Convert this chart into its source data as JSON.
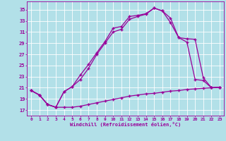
{
  "xlabel": "Windchill (Refroidissement éolien,°C)",
  "background_color": "#b2e0e8",
  "grid_color": "#ffffff",
  "line_color": "#990099",
  "x_ticks": [
    0,
    1,
    2,
    3,
    4,
    5,
    6,
    7,
    8,
    9,
    10,
    11,
    12,
    13,
    14,
    15,
    16,
    17,
    18,
    19,
    20,
    21,
    22,
    23
  ],
  "y_ticks": [
    17,
    19,
    21,
    23,
    25,
    27,
    29,
    31,
    33,
    35
  ],
  "ylim": [
    16.0,
    36.5
  ],
  "xlim": [
    -0.5,
    23.5
  ],
  "line1_x": [
    0,
    1,
    2,
    3,
    4,
    5,
    6,
    7,
    8,
    9,
    10,
    11,
    12,
    13,
    14,
    15,
    16,
    17,
    18,
    19,
    20,
    21,
    22,
    23
  ],
  "line1_y": [
    20.5,
    19.7,
    18.0,
    17.5,
    17.5,
    17.5,
    17.7,
    18.0,
    18.3,
    18.6,
    18.9,
    19.2,
    19.5,
    19.7,
    19.9,
    20.0,
    20.2,
    20.4,
    20.5,
    20.7,
    20.8,
    20.9,
    21.0,
    21.1
  ],
  "line2_x": [
    0,
    1,
    2,
    3,
    4,
    5,
    6,
    7,
    8,
    9,
    10,
    11,
    12,
    13,
    14,
    15,
    16,
    17,
    18,
    19,
    20,
    21,
    22,
    23
  ],
  "line2_y": [
    20.5,
    19.7,
    18.0,
    17.5,
    20.3,
    21.2,
    23.3,
    25.2,
    27.3,
    29.3,
    31.7,
    32.0,
    33.8,
    34.0,
    34.3,
    35.3,
    34.8,
    33.5,
    30.0,
    29.2,
    22.5,
    22.3,
    21.0,
    21.1
  ],
  "line3_x": [
    0,
    1,
    2,
    3,
    4,
    5,
    6,
    7,
    8,
    9,
    10,
    11,
    12,
    13,
    14,
    15,
    16,
    17,
    18,
    19,
    20,
    21,
    22,
    23
  ],
  "line3_y": [
    20.5,
    19.7,
    18.0,
    17.5,
    20.3,
    21.2,
    22.5,
    24.5,
    27.0,
    29.0,
    31.0,
    31.5,
    33.3,
    33.8,
    34.2,
    35.3,
    34.8,
    32.7,
    30.0,
    29.8,
    29.7,
    22.8,
    21.0,
    21.1
  ]
}
